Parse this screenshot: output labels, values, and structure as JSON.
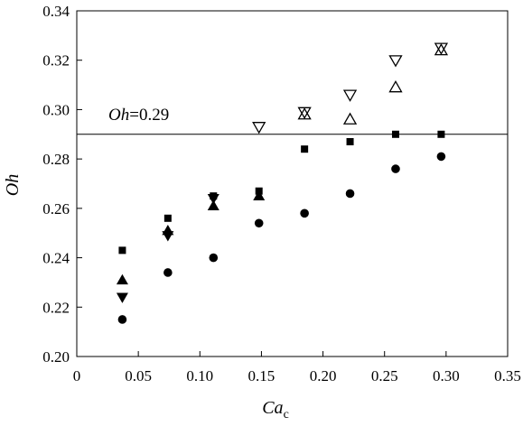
{
  "chart_data": {
    "type": "scatter",
    "title": "",
    "xlabel": "Ca",
    "xlabel_subscript": "c",
    "ylabel": "Oh",
    "xlim": [
      0,
      0.35
    ],
    "ylim": [
      0.2,
      0.34
    ],
    "xticks": [
      0,
      0.05,
      0.1,
      0.15,
      0.2,
      0.25,
      0.3,
      0.35
    ],
    "xtick_labels": [
      "0",
      "0.05",
      "0.10",
      "0.15",
      "0.20",
      "0.25",
      "0.30",
      "0.35"
    ],
    "yticks": [
      0.2,
      0.22,
      0.24,
      0.26,
      0.28,
      0.3,
      0.32,
      0.34
    ],
    "ytick_labels": [
      "0.20",
      "0.22",
      "0.24",
      "0.26",
      "0.28",
      "0.30",
      "0.32",
      "0.34"
    ],
    "grid": false,
    "legend": "none",
    "reference_line": {
      "y": 0.29,
      "label_italic": "Oh",
      "label_rest": "=0.29"
    },
    "series": [
      {
        "marker": "filled-square",
        "points": [
          [
            0.037,
            0.243
          ],
          [
            0.074,
            0.256
          ],
          [
            0.111,
            0.265
          ],
          [
            0.148,
            0.267
          ],
          [
            0.185,
            0.284
          ],
          [
            0.222,
            0.287
          ],
          [
            0.259,
            0.29
          ],
          [
            0.296,
            0.29
          ]
        ]
      },
      {
        "marker": "filled-triangle-up",
        "points": [
          [
            0.037,
            0.231
          ],
          [
            0.074,
            0.251
          ],
          [
            0.111,
            0.261
          ],
          [
            0.148,
            0.265
          ]
        ]
      },
      {
        "marker": "filled-triangle-down",
        "points": [
          [
            0.037,
            0.224
          ],
          [
            0.074,
            0.249
          ],
          [
            0.111,
            0.264
          ]
        ]
      },
      {
        "marker": "filled-circle",
        "points": [
          [
            0.037,
            0.215
          ],
          [
            0.074,
            0.234
          ],
          [
            0.111,
            0.24
          ],
          [
            0.148,
            0.254
          ],
          [
            0.185,
            0.258
          ],
          [
            0.222,
            0.266
          ],
          [
            0.259,
            0.276
          ],
          [
            0.296,
            0.281
          ]
        ]
      },
      {
        "marker": "open-triangle-up",
        "points": [
          [
            0.185,
            0.298
          ],
          [
            0.222,
            0.296
          ],
          [
            0.259,
            0.309
          ],
          [
            0.296,
            0.324
          ]
        ]
      },
      {
        "marker": "open-triangle-down",
        "points": [
          [
            0.148,
            0.293
          ],
          [
            0.185,
            0.299
          ],
          [
            0.222,
            0.306
          ],
          [
            0.259,
            0.32
          ],
          [
            0.296,
            0.325
          ]
        ]
      }
    ]
  }
}
